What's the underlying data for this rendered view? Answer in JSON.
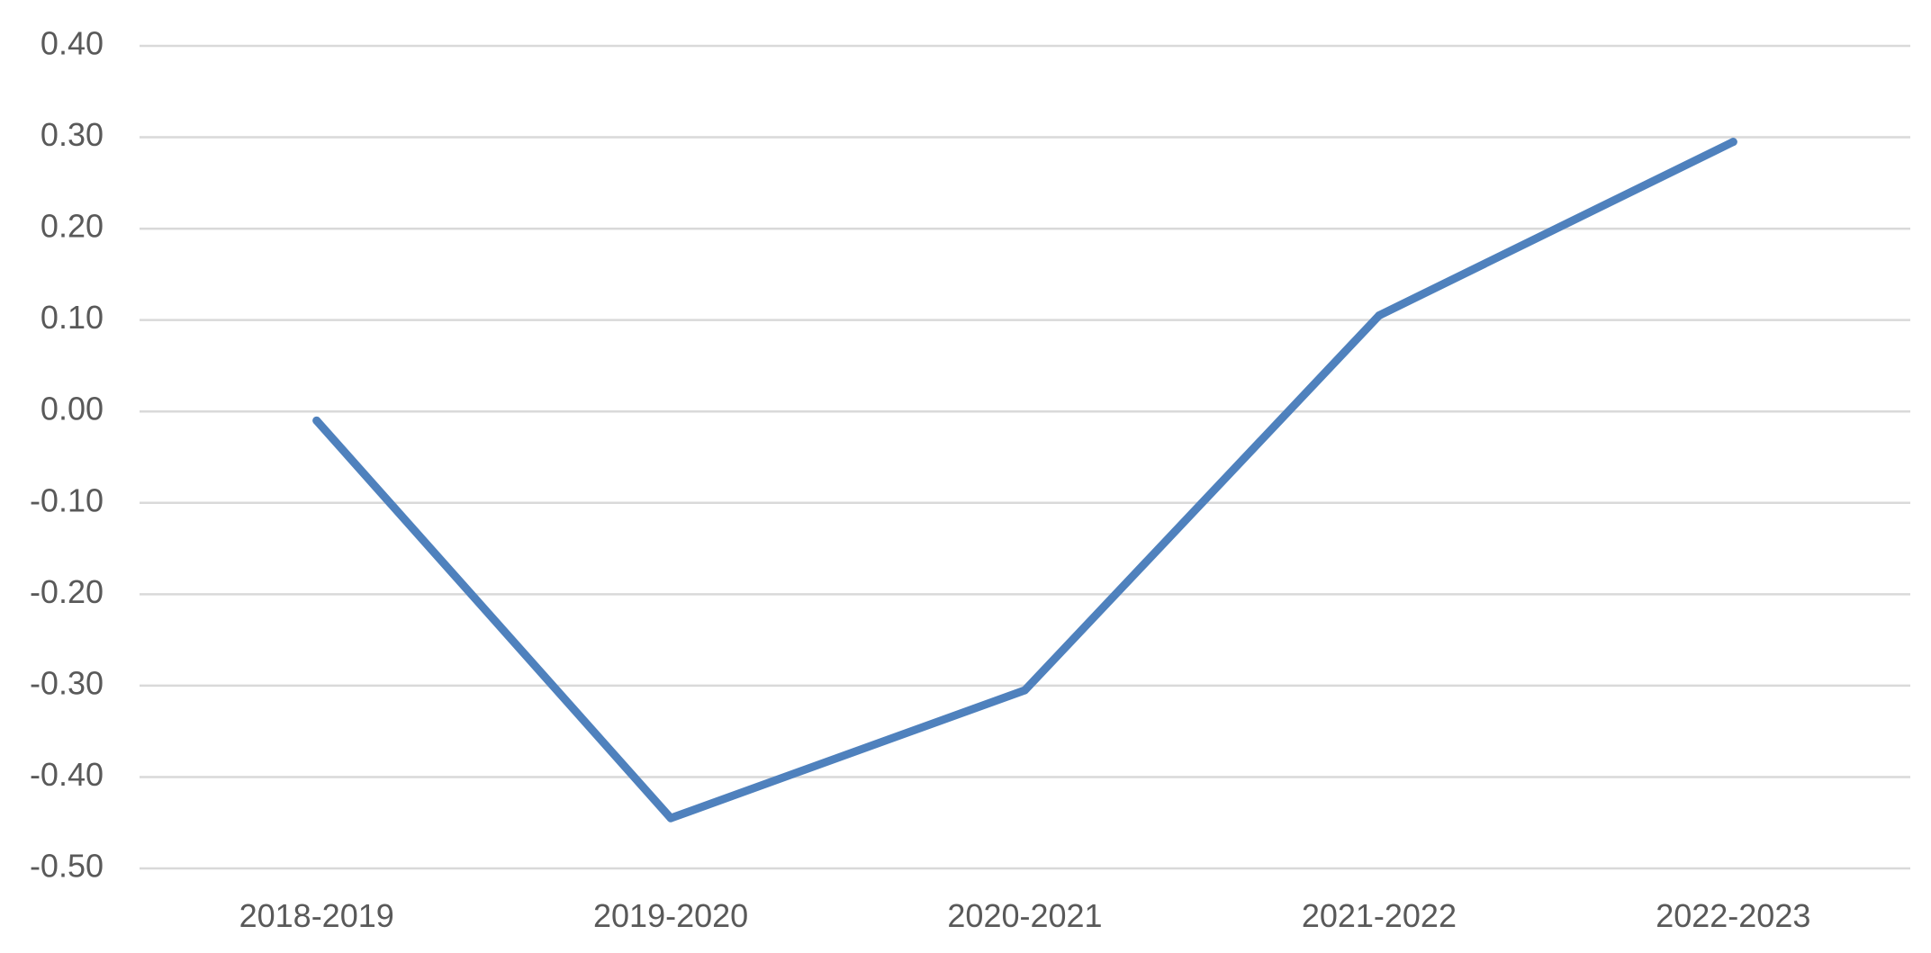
{
  "chart_data": {
    "type": "line",
    "title": "",
    "xlabel": "",
    "ylabel": "",
    "categories": [
      "2018-2019",
      "2019-2020",
      "2020-2021",
      "2021-2022",
      "2022-2023"
    ],
    "series": [
      {
        "values": [
          -0.01,
          -0.445,
          -0.305,
          0.105,
          0.295
        ],
        "color": "#4f81bd"
      }
    ],
    "ylim": [
      -0.5,
      0.4
    ],
    "yticks": [
      0.4,
      0.3,
      0.2,
      0.1,
      0.0,
      -0.1,
      -0.2,
      -0.3,
      -0.4,
      -0.5
    ],
    "ytick_labels": [
      "0.40",
      "0.30",
      "0.20",
      "0.10",
      "0.00",
      "-0.10",
      "-0.20",
      "-0.30",
      "-0.40",
      "-0.50"
    ],
    "grid": true,
    "legend": "none"
  }
}
